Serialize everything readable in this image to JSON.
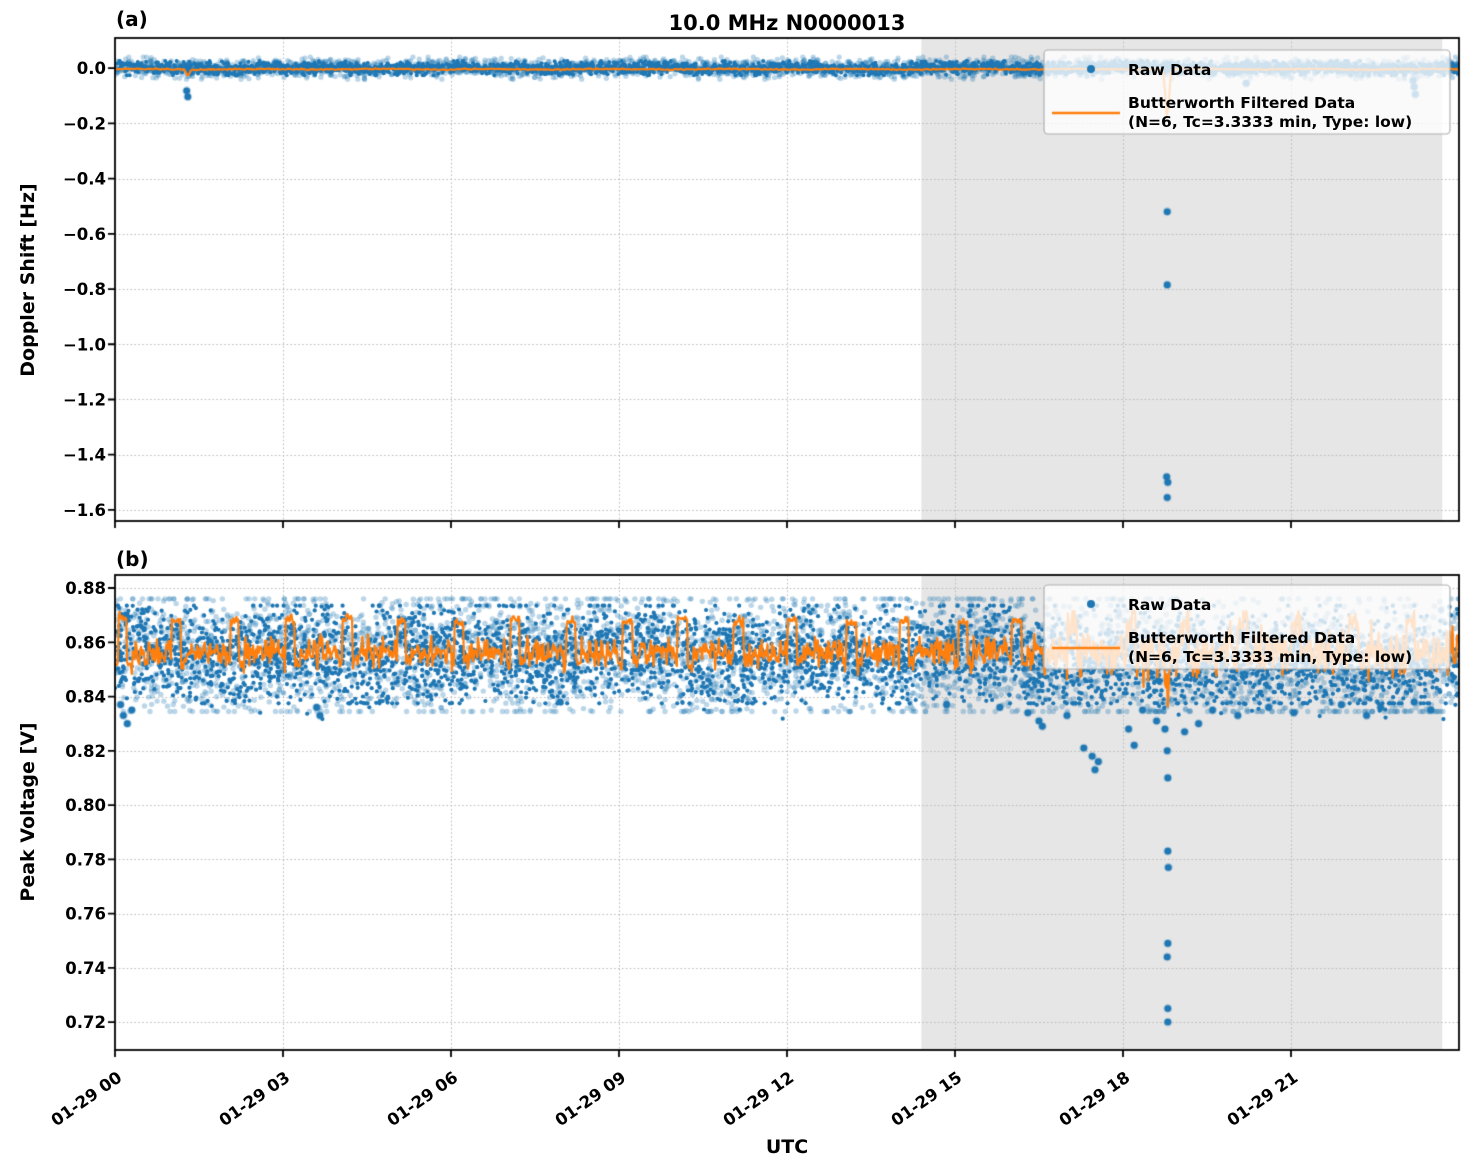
{
  "figure": {
    "xlabel": "UTC",
    "legend": {
      "raw_label": "Raw Data",
      "filtered_label_line1": "Butterworth Filtered Data",
      "filtered_label_line2": "(N=6, Tc=3.3333 min, Type: low)"
    },
    "colors": {
      "raw": "#1f77b4",
      "raw_halo": "rgba(31,119,180,0.30)",
      "filtered": "#ff7f0e",
      "shade": "#e6e6e6",
      "grid": "#b8b8b8",
      "spine": "#000000",
      "legend_bg": "rgba(255,255,255,0.78)",
      "legend_border": "#b0b0b0"
    }
  },
  "chart_data": [
    {
      "type": "scatter",
      "panel": "(a)",
      "title": "10.0 MHz N0000013",
      "ylabel": "Doppler Shift [Hz]",
      "xlabel": "UTC",
      "x_tick_labels": [
        "01-29 00",
        "01-29 03",
        "01-29 06",
        "01-29 09",
        "01-29 12",
        "01-29 15",
        "01-29 18",
        "01-29 21"
      ],
      "x_tick_hours": [
        0,
        3,
        6,
        9,
        12,
        15,
        18,
        21
      ],
      "xlim_hours": [
        0,
        24
      ],
      "y_tick_labels": [
        "0.0",
        "−0.2",
        "−0.4",
        "−0.6",
        "−0.8",
        "−1.0",
        "−1.2",
        "−1.4",
        "−1.6"
      ],
      "y_tick_values": [
        0.0,
        -0.2,
        -0.4,
        -0.6,
        -0.8,
        -1.0,
        -1.2,
        -1.4,
        -1.6
      ],
      "ylim": [
        -1.64,
        0.109
      ],
      "grid": true,
      "legend_position": "upper right",
      "legend_entries": [
        "Raw Data",
        "Butterworth Filtered Data (N=6, Tc=3.3333 min, Type: low)"
      ],
      "shaded_region_hours": [
        14.4,
        23.7
      ],
      "series": [
        {
          "name": "Raw Data",
          "kind": "scatter-band",
          "band_center": 0.0,
          "band_core_spread": 0.022,
          "band_halo_spread": 0.036,
          "outliers": [
            [
              1.28,
              -0.082
            ],
            [
              1.3,
              -0.104
            ],
            [
              18.79,
              -0.52
            ],
            [
              18.79,
              -0.785
            ],
            [
              18.78,
              -1.48
            ],
            [
              18.8,
              -1.5
            ],
            [
              18.79,
              -1.555
            ],
            [
              20.2,
              -0.055
            ],
            [
              23.18,
              -0.045
            ],
            [
              23.2,
              -0.068
            ],
            [
              23.22,
              -0.095
            ]
          ]
        },
        {
          "name": "Butterworth Filtered Data (N=6, Tc=3.3333 min, Type: low)",
          "kind": "line",
          "baseline": -0.004,
          "dips": [
            [
              1.3,
              -0.025
            ],
            [
              18.79,
              -0.18
            ]
          ]
        }
      ]
    },
    {
      "type": "scatter",
      "panel": "(b)",
      "ylabel": "Peak Voltage [V]",
      "xlabel": "UTC",
      "x_tick_labels": [
        "01-29 00",
        "01-29 03",
        "01-29 06",
        "01-29 09",
        "01-29 12",
        "01-29 15",
        "01-29 18",
        "01-29 21"
      ],
      "x_tick_hours": [
        0,
        3,
        6,
        9,
        12,
        15,
        18,
        21
      ],
      "xlim_hours": [
        0,
        24
      ],
      "y_tick_labels": [
        "0.88",
        "0.86",
        "0.84",
        "0.82",
        "0.80",
        "0.78",
        "0.76",
        "0.74",
        "0.72"
      ],
      "y_tick_values": [
        0.88,
        0.86,
        0.84,
        0.82,
        0.8,
        0.78,
        0.76,
        0.74,
        0.72
      ],
      "ylim": [
        0.7097,
        0.8848
      ],
      "grid": true,
      "legend_position": "upper right",
      "legend_entries": [
        "Raw Data",
        "Butterworth Filtered Data (N=6, Tc=3.3333 min, Type: low)"
      ],
      "shaded_region_hours": [
        14.4,
        23.7
      ],
      "series": [
        {
          "name": "Raw Data",
          "kind": "scatter-band",
          "band_center": 0.8555,
          "band_core_range": [
            0.8375,
            0.8735
          ],
          "band_halo_range": [
            0.8345,
            0.876
          ],
          "outliers": [
            [
              0.1,
              0.837
            ],
            [
              0.15,
              0.833
            ],
            [
              0.22,
              0.83
            ],
            [
              0.3,
              0.835
            ],
            [
              3.6,
              0.836
            ],
            [
              3.66,
              0.833
            ],
            [
              7.95,
              0.838
            ],
            [
              14.85,
              0.837
            ],
            [
              15.8,
              0.836
            ],
            [
              16.3,
              0.834
            ],
            [
              16.5,
              0.831
            ],
            [
              16.56,
              0.829
            ],
            [
              17.0,
              0.833
            ],
            [
              17.3,
              0.821
            ],
            [
              17.45,
              0.818
            ],
            [
              17.5,
              0.813
            ],
            [
              17.56,
              0.816
            ],
            [
              18.1,
              0.828
            ],
            [
              18.2,
              0.822
            ],
            [
              18.35,
              0.835
            ],
            [
              18.6,
              0.831
            ],
            [
              18.75,
              0.828
            ],
            [
              18.79,
              0.82
            ],
            [
              18.8,
              0.81
            ],
            [
              18.8,
              0.783
            ],
            [
              18.81,
              0.777
            ],
            [
              18.8,
              0.749
            ],
            [
              18.79,
              0.744
            ],
            [
              18.8,
              0.725
            ],
            [
              18.8,
              0.72
            ],
            [
              19.1,
              0.827
            ],
            [
              19.35,
              0.83
            ],
            [
              19.6,
              0.835
            ],
            [
              20.05,
              0.833
            ],
            [
              20.6,
              0.836
            ],
            [
              21.05,
              0.834
            ],
            [
              21.9,
              0.837
            ],
            [
              22.35,
              0.833
            ],
            [
              22.6,
              0.836
            ],
            [
              23.2,
              0.838
            ],
            [
              23.5,
              0.835
            ]
          ]
        },
        {
          "name": "Butterworth Filtered Data (N=6, Tc=3.3333 min, Type: low)",
          "kind": "line",
          "baseline": 0.8565,
          "pulse_high": 0.868,
          "pulse_low": 0.8525,
          "pulse_period_hours": 1.0,
          "pulse_width_min": 9,
          "noisy_after_hour": 16.3,
          "dip": [
            18.8,
            0.8425
          ]
        }
      ]
    }
  ]
}
